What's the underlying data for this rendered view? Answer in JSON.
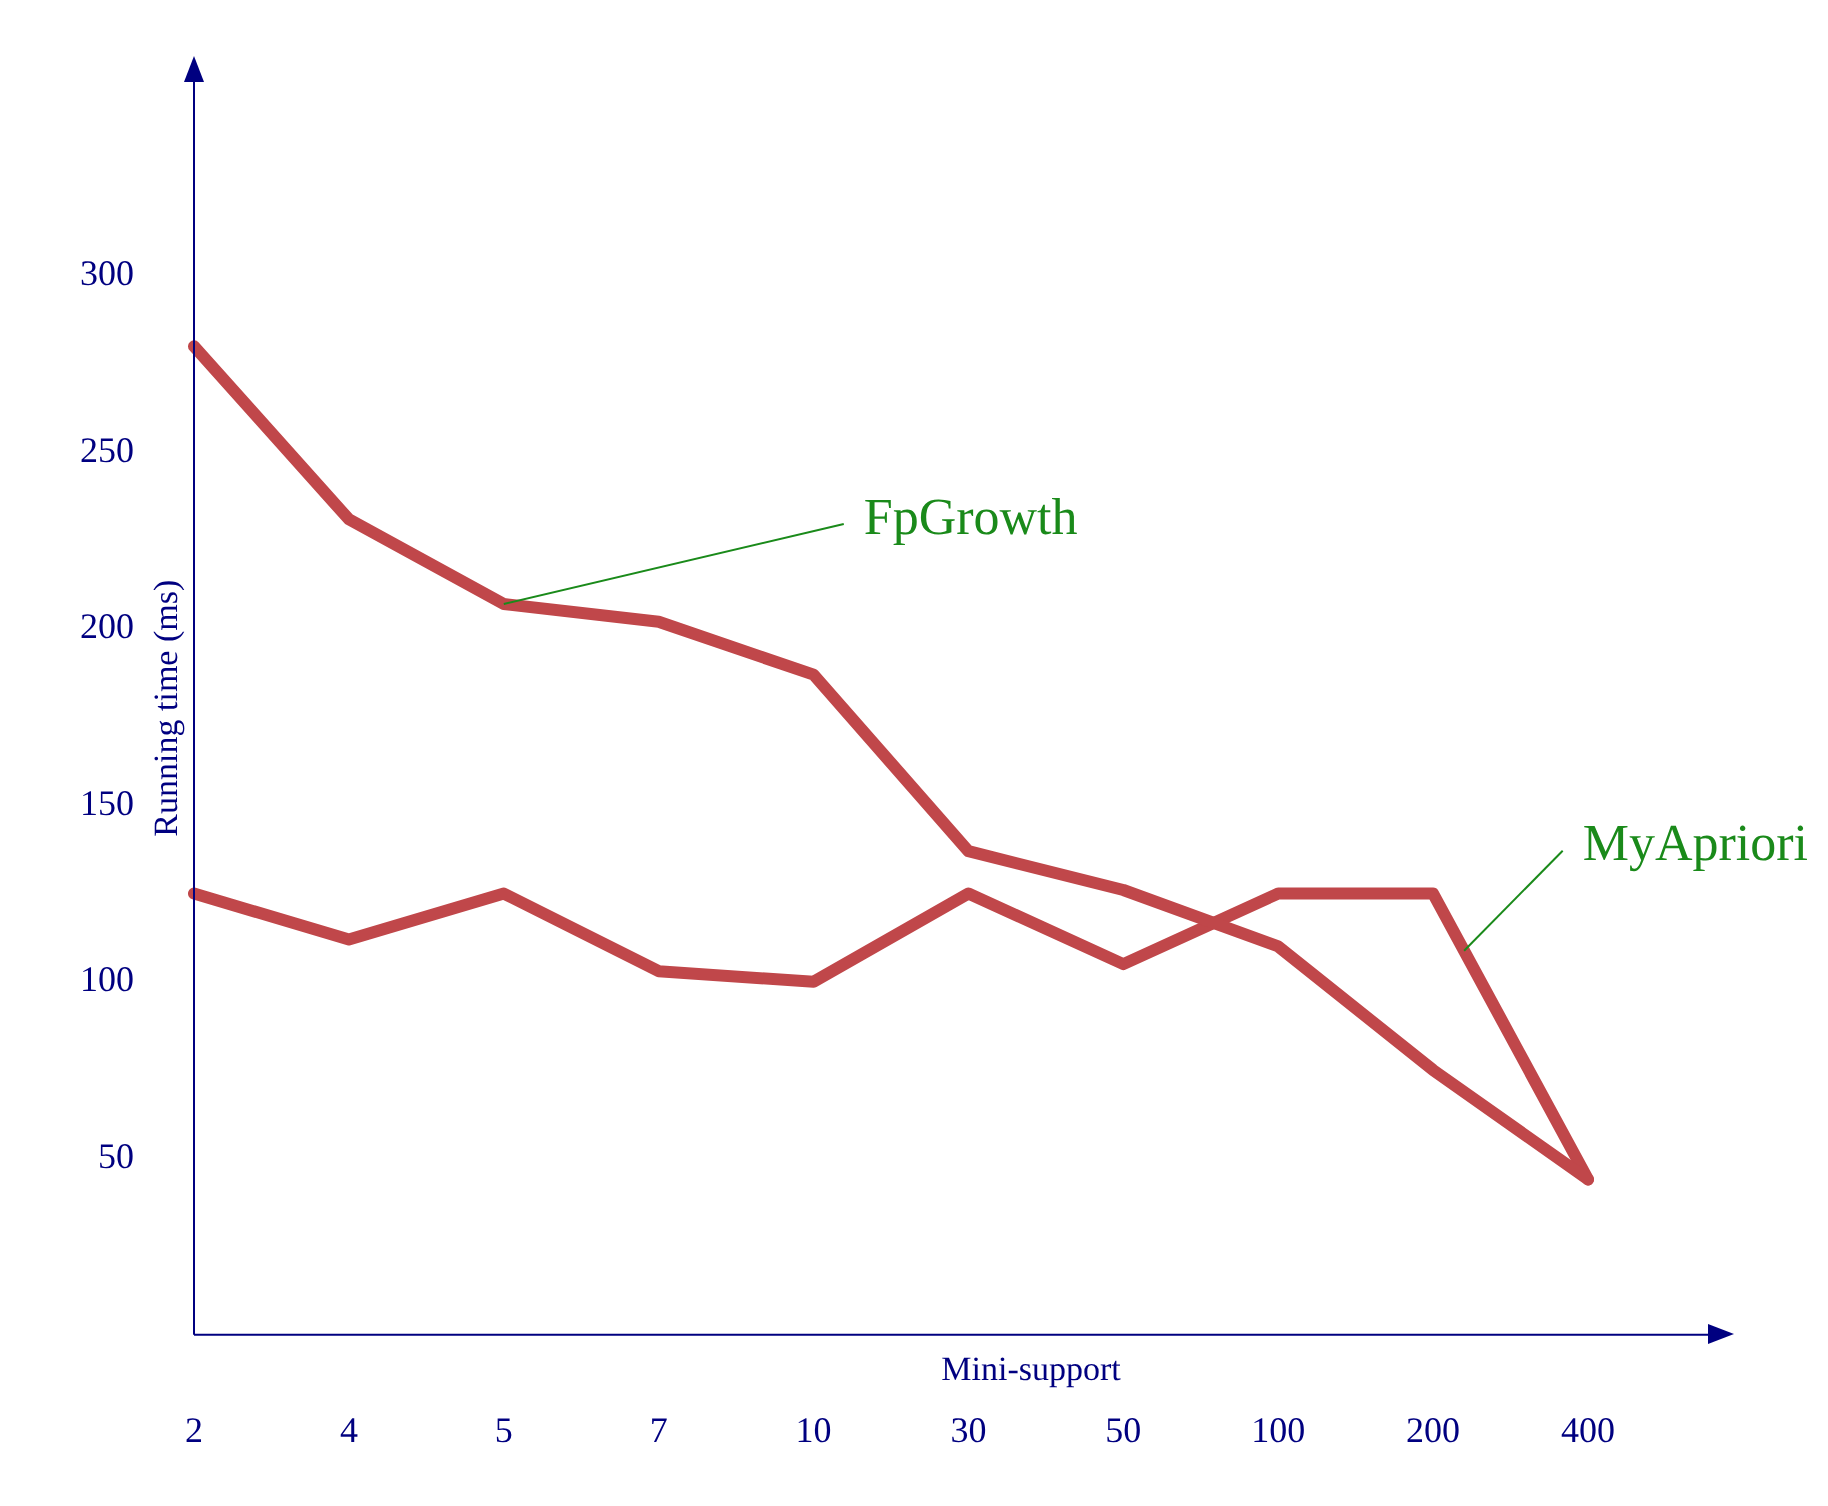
{
  "chart_data": {
    "type": "line",
    "xlabel": "Mini-support",
    "ylabel": "Running time (ms)",
    "categories": [
      "2",
      "4",
      "5",
      "7",
      "10",
      "30",
      "50",
      "100",
      "200",
      "400"
    ],
    "series": [
      {
        "name": "FpGrowth",
        "color": "#c0474a",
        "values": [
          280,
          231,
          207,
          202,
          187,
          137,
          126,
          110,
          75,
          44
        ]
      },
      {
        "name": "MyApriori",
        "color": "#c0474a",
        "values": [
          125,
          112,
          125,
          103,
          100,
          125,
          105,
          125,
          125,
          44
        ]
      }
    ],
    "ylim": [
      0,
      355
    ],
    "yticks": [
      50,
      100,
      150,
      200,
      250,
      300
    ],
    "grid": false,
    "legend": false,
    "marker": "none",
    "line_style": "solid"
  }
}
